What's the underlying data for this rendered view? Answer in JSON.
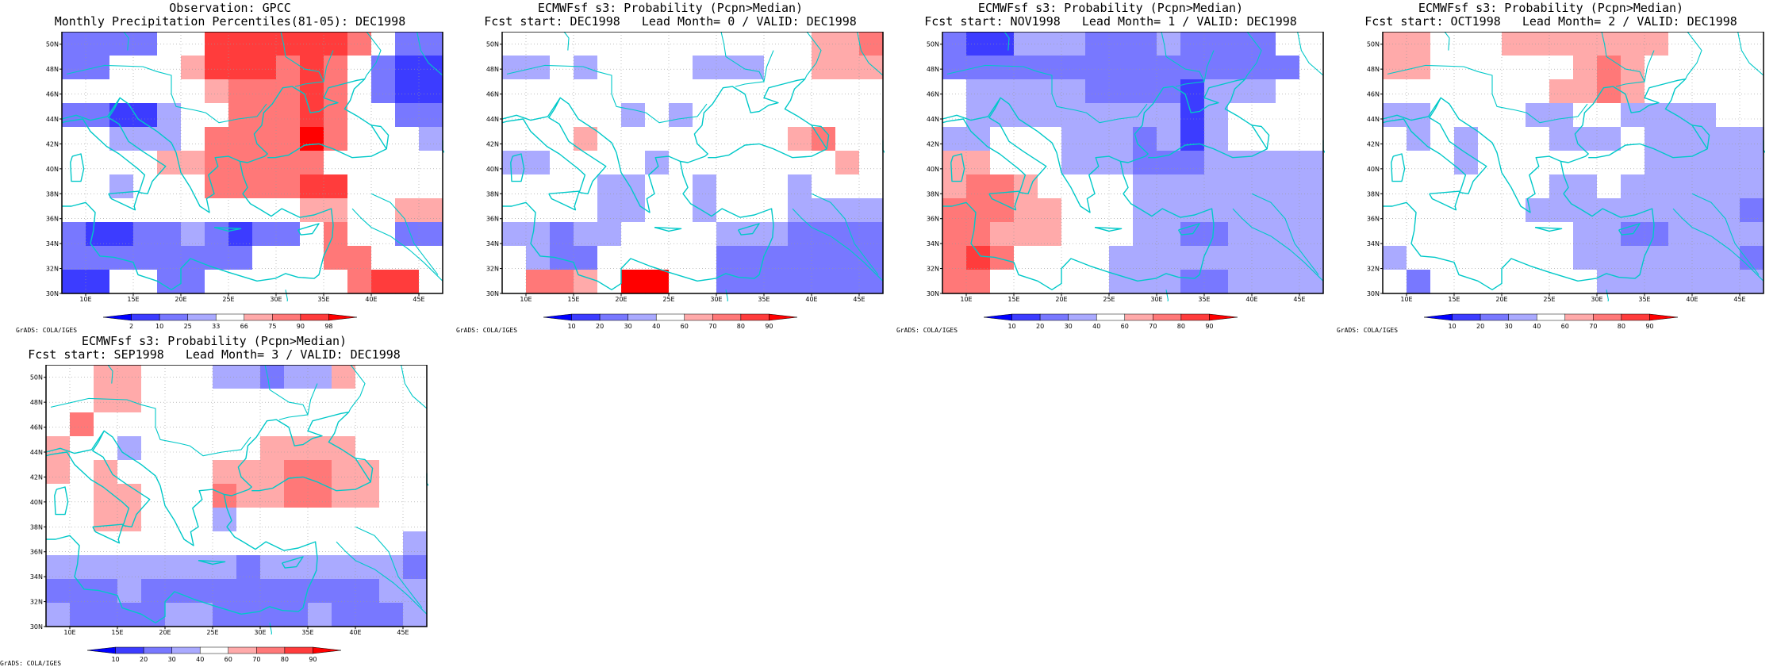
{
  "chart_data": [
    {
      "type": "heatmap",
      "title_line1": "Observation: GPCC",
      "title_line2": "Monthly Precipitation Percentiles(81-05): DEC1998",
      "credit": "GrADS: COLA/IGES",
      "xticks": [
        "10E",
        "15E",
        "20E",
        "25E",
        "30E",
        "35E",
        "40E",
        "45E"
      ],
      "yticks": [
        "30N",
        "32N",
        "34N",
        "36N",
        "38N",
        "40N",
        "42N",
        "44N",
        "46N",
        "48N",
        "50N"
      ],
      "xlim": [
        7.5,
        47.5
      ],
      "ylim": [
        30,
        51
      ],
      "colorbar": {
        "labels": [
          "2",
          "10",
          "25",
          "33",
          "66",
          "75",
          "90",
          "98"
        ],
        "colors": [
          "#0000ff",
          "#3c3cff",
          "#7878ff",
          "#aaaaff",
          "#ffffff",
          "#ffaaaa",
          "#ff7878",
          "#ff3c3c",
          "#ff0000"
        ]
      },
      "grid_values": [
        [
          2,
          2,
          2,
          2,
          4,
          4,
          7,
          7,
          7,
          7,
          7,
          7,
          6,
          4,
          2,
          2
        ],
        [
          2,
          2,
          4,
          4,
          4,
          5,
          7,
          7,
          7,
          6,
          7,
          6,
          4,
          2,
          1,
          1
        ],
        [
          4,
          4,
          4,
          4,
          4,
          4,
          5,
          6,
          6,
          6,
          7,
          6,
          4,
          2,
          1,
          1
        ],
        [
          2,
          2,
          1,
          1,
          3,
          4,
          4,
          6,
          6,
          6,
          7,
          6,
          4,
          4,
          2,
          2
        ],
        [
          4,
          4,
          3,
          3,
          3,
          4,
          6,
          6,
          6,
          6,
          8,
          6,
          4,
          4,
          4,
          3
        ],
        [
          4,
          4,
          4,
          4,
          5,
          5,
          6,
          6,
          6,
          6,
          6,
          4,
          4,
          4,
          4,
          4
        ],
        [
          4,
          4,
          3,
          4,
          4,
          4,
          6,
          6,
          6,
          6,
          7,
          7,
          4,
          4,
          4,
          4
        ],
        [
          4,
          4,
          4,
          4,
          4,
          4,
          4,
          4,
          4,
          4,
          5,
          5,
          4,
          4,
          5,
          5
        ],
        [
          2,
          1,
          1,
          2,
          2,
          3,
          2,
          1,
          2,
          2,
          4,
          6,
          4,
          4,
          2,
          2
        ],
        [
          2,
          2,
          2,
          2,
          2,
          2,
          2,
          2,
          4,
          4,
          4,
          6,
          6,
          4,
          4,
          4
        ],
        [
          1,
          1,
          4,
          4,
          2,
          2,
          4,
          4,
          4,
          4,
          4,
          4,
          6,
          7,
          7,
          4
        ]
      ]
    },
    {
      "type": "heatmap",
      "title_line1": "ECMWFsf s3: Probability (Pcpn>Median)",
      "title_line2": "Fcst start: DEC1998   Lead Month= 0 / VALID: DEC1998",
      "credit": "GrADS: COLA/IGES",
      "xticks": [
        "10E",
        "15E",
        "20E",
        "25E",
        "30E",
        "35E",
        "40E",
        "45E"
      ],
      "yticks": [
        "30N",
        "32N",
        "34N",
        "36N",
        "38N",
        "40N",
        "42N",
        "44N",
        "46N",
        "48N",
        "50N"
      ],
      "xlim": [
        7.5,
        47.5
      ],
      "ylim": [
        30,
        51
      ],
      "colorbar": {
        "labels": [
          "10",
          "20",
          "30",
          "40",
          "60",
          "70",
          "80",
          "90"
        ],
        "colors": [
          "#0000ff",
          "#3c3cff",
          "#7878ff",
          "#aaaaff",
          "#ffffff",
          "#ffaaaa",
          "#ff7878",
          "#ff3c3c",
          "#ff0000"
        ]
      },
      "grid_values": [
        [
          4,
          4,
          4,
          4,
          4,
          4,
          4,
          4,
          4,
          4,
          4,
          4,
          4,
          5,
          5,
          6
        ],
        [
          3,
          3,
          4,
          3,
          4,
          4,
          4,
          4,
          3,
          3,
          3,
          4,
          4,
          5,
          5,
          5
        ],
        [
          4,
          4,
          4,
          4,
          4,
          4,
          4,
          4,
          4,
          4,
          4,
          4,
          4,
          4,
          4,
          4
        ],
        [
          4,
          4,
          4,
          4,
          4,
          3,
          4,
          3,
          4,
          4,
          4,
          4,
          4,
          4,
          4,
          4
        ],
        [
          4,
          4,
          4,
          5,
          4,
          4,
          4,
          4,
          4,
          4,
          4,
          4,
          5,
          6,
          4,
          4
        ],
        [
          3,
          3,
          4,
          4,
          4,
          4,
          3,
          4,
          4,
          4,
          4,
          4,
          4,
          4,
          5,
          4
        ],
        [
          4,
          4,
          4,
          4,
          3,
          3,
          4,
          4,
          3,
          4,
          4,
          4,
          3,
          4,
          4,
          4
        ],
        [
          4,
          4,
          4,
          4,
          3,
          3,
          4,
          4,
          3,
          4,
          4,
          4,
          3,
          3,
          3,
          3
        ],
        [
          3,
          3,
          2,
          3,
          3,
          4,
          4,
          4,
          4,
          3,
          3,
          3,
          2,
          2,
          2,
          2
        ],
        [
          4,
          3,
          2,
          2,
          4,
          4,
          4,
          4,
          4,
          2,
          2,
          2,
          2,
          2,
          2,
          2
        ],
        [
          4,
          6,
          6,
          5,
          4,
          8,
          8,
          4,
          4,
          2,
          2,
          2,
          2,
          2,
          2,
          2
        ]
      ]
    },
    {
      "type": "heatmap",
      "title_line1": "ECMWFsf s3: Probability (Pcpn>Median)",
      "title_line2": "Fcst start: NOV1998   Lead Month= 1 / VALID: DEC1998",
      "credit": "GrADS: COLA/IGES",
      "xticks": [
        "10E",
        "15E",
        "20E",
        "25E",
        "30E",
        "35E",
        "40E",
        "45E"
      ],
      "yticks": [
        "30N",
        "32N",
        "34N",
        "36N",
        "38N",
        "40N",
        "42N",
        "44N",
        "46N",
        "48N",
        "50N"
      ],
      "xlim": [
        7.5,
        47.5
      ],
      "ylim": [
        30,
        51
      ],
      "colorbar": {
        "labels": [
          "10",
          "20",
          "30",
          "40",
          "60",
          "70",
          "80",
          "90"
        ],
        "colors": [
          "#0000ff",
          "#3c3cff",
          "#7878ff",
          "#aaaaff",
          "#ffffff",
          "#ffaaaa",
          "#ff7878",
          "#ff3c3c",
          "#ff0000"
        ]
      },
      "grid_values": [
        [
          2,
          1,
          1,
          3,
          3,
          3,
          2,
          2,
          2,
          3,
          2,
          2,
          2,
          2,
          4,
          4
        ],
        [
          2,
          2,
          2,
          2,
          2,
          2,
          2,
          2,
          2,
          2,
          2,
          2,
          2,
          2,
          2,
          4
        ],
        [
          4,
          3,
          3,
          3,
          3,
          3,
          2,
          2,
          2,
          2,
          1,
          3,
          3,
          3,
          4,
          4
        ],
        [
          4,
          3,
          3,
          3,
          3,
          3,
          3,
          3,
          3,
          3,
          1,
          3,
          4,
          4,
          4,
          4
        ],
        [
          3,
          3,
          4,
          4,
          4,
          3,
          3,
          3,
          2,
          3,
          1,
          3,
          4,
          4,
          4,
          4
        ],
        [
          5,
          5,
          4,
          4,
          4,
          3,
          3,
          3,
          2,
          2,
          2,
          3,
          3,
          3,
          3,
          3
        ],
        [
          5,
          6,
          6,
          5,
          4,
          4,
          4,
          4,
          3,
          3,
          3,
          3,
          3,
          3,
          3,
          3
        ],
        [
          6,
          6,
          6,
          5,
          5,
          4,
          4,
          4,
          3,
          3,
          3,
          3,
          3,
          3,
          3,
          3
        ],
        [
          6,
          6,
          5,
          5,
          5,
          4,
          4,
          4,
          3,
          3,
          2,
          2,
          3,
          3,
          3,
          3
        ],
        [
          6,
          7,
          6,
          4,
          4,
          4,
          4,
          3,
          3,
          3,
          3,
          3,
          3,
          3,
          3,
          3
        ],
        [
          6,
          6,
          4,
          4,
          4,
          4,
          4,
          3,
          3,
          3,
          2,
          2,
          3,
          3,
          3,
          3
        ]
      ]
    },
    {
      "type": "heatmap",
      "title_line1": "ECMWFsf s3: Probability (Pcpn>Median)",
      "title_line2": "Fcst start: OCT1998   Lead Month= 2 / VALID: DEC1998",
      "credit": "GrADS: COLA/IGES",
      "xticks": [
        "10E",
        "15E",
        "20E",
        "25E",
        "30E",
        "35E",
        "40E",
        "45E"
      ],
      "yticks": [
        "30N",
        "32N",
        "34N",
        "36N",
        "38N",
        "40N",
        "42N",
        "44N",
        "46N",
        "48N",
        "50N"
      ],
      "xlim": [
        7.5,
        47.5
      ],
      "ylim": [
        30,
        51
      ],
      "colorbar": {
        "labels": [
          "10",
          "20",
          "30",
          "40",
          "60",
          "70",
          "80",
          "90"
        ],
        "colors": [
          "#0000ff",
          "#3c3cff",
          "#7878ff",
          "#aaaaff",
          "#ffffff",
          "#ffaaaa",
          "#ff7878",
          "#ff3c3c",
          "#ff0000"
        ]
      },
      "grid_values": [
        [
          5,
          5,
          4,
          4,
          4,
          5,
          5,
          5,
          5,
          5,
          5,
          5,
          4,
          4,
          4,
          4
        ],
        [
          5,
          5,
          4,
          4,
          4,
          4,
          4,
          4,
          5,
          6,
          5,
          4,
          4,
          4,
          4,
          4
        ],
        [
          4,
          4,
          4,
          4,
          4,
          4,
          4,
          5,
          5,
          6,
          5,
          4,
          4,
          4,
          4,
          4
        ],
        [
          3,
          3,
          4,
          4,
          4,
          4,
          3,
          3,
          4,
          4,
          3,
          3,
          3,
          3,
          4,
          4
        ],
        [
          4,
          3,
          4,
          3,
          4,
          4,
          4,
          3,
          3,
          3,
          4,
          3,
          3,
          3,
          3,
          3
        ],
        [
          4,
          4,
          4,
          3,
          4,
          4,
          4,
          4,
          4,
          4,
          4,
          3,
          3,
          3,
          3,
          3
        ],
        [
          4,
          4,
          4,
          4,
          4,
          4,
          4,
          3,
          3,
          4,
          3,
          3,
          3,
          3,
          3,
          3
        ],
        [
          4,
          4,
          4,
          4,
          4,
          4,
          3,
          3,
          3,
          3,
          3,
          3,
          3,
          3,
          3,
          2
        ],
        [
          4,
          4,
          4,
          4,
          4,
          4,
          4,
          4,
          3,
          3,
          2,
          2,
          3,
          3,
          3,
          3
        ],
        [
          3,
          4,
          4,
          4,
          4,
          4,
          4,
          4,
          3,
          3,
          3,
          3,
          3,
          3,
          3,
          2
        ],
        [
          4,
          2,
          4,
          4,
          4,
          4,
          4,
          4,
          4,
          3,
          3,
          3,
          3,
          3,
          3,
          3
        ]
      ]
    },
    {
      "type": "heatmap",
      "title_line1": "ECMWFsf s3: Probability (Pcpn>Median)",
      "title_line2": "Fcst start: SEP1998   Lead Month= 3 / VALID: DEC1998",
      "credit": "GrADS: COLA/IGES",
      "xticks": [
        "10E",
        "15E",
        "20E",
        "25E",
        "30E",
        "35E",
        "40E",
        "45E"
      ],
      "yticks": [
        "30N",
        "32N",
        "34N",
        "36N",
        "38N",
        "40N",
        "42N",
        "44N",
        "46N",
        "48N",
        "50N"
      ],
      "xlim": [
        7.5,
        47.5
      ],
      "ylim": [
        30,
        51
      ],
      "colorbar": {
        "labels": [
          "10",
          "20",
          "30",
          "40",
          "60",
          "70",
          "80",
          "90"
        ],
        "colors": [
          "#0000ff",
          "#3c3cff",
          "#7878ff",
          "#aaaaff",
          "#ffffff",
          "#ffaaaa",
          "#ff7878",
          "#ff3c3c",
          "#ff0000"
        ]
      },
      "grid_values": [
        [
          4,
          4,
          5,
          5,
          4,
          4,
          4,
          3,
          3,
          2,
          3,
          3,
          5,
          4,
          4,
          4
        ],
        [
          4,
          4,
          5,
          5,
          4,
          4,
          4,
          4,
          4,
          4,
          4,
          4,
          4,
          4,
          4,
          4
        ],
        [
          4,
          6,
          4,
          4,
          4,
          4,
          4,
          4,
          4,
          4,
          4,
          4,
          4,
          4,
          4,
          4
        ],
        [
          5,
          4,
          4,
          3,
          4,
          4,
          4,
          4,
          4,
          5,
          5,
          5,
          5,
          4,
          4,
          4
        ],
        [
          5,
          4,
          5,
          4,
          4,
          4,
          4,
          5,
          5,
          5,
          6,
          6,
          5,
          5,
          4,
          4
        ],
        [
          4,
          4,
          5,
          5,
          4,
          4,
          4,
          6,
          5,
          5,
          6,
          6,
          5,
          5,
          4,
          4
        ],
        [
          4,
          4,
          5,
          5,
          4,
          4,
          4,
          3,
          4,
          4,
          4,
          4,
          4,
          4,
          4,
          4
        ],
        [
          4,
          4,
          4,
          4,
          4,
          4,
          4,
          4,
          4,
          4,
          4,
          4,
          4,
          4,
          4,
          3
        ],
        [
          3,
          3,
          3,
          3,
          3,
          3,
          3,
          3,
          2,
          3,
          3,
          3,
          3,
          3,
          3,
          2
        ],
        [
          2,
          2,
          2,
          3,
          2,
          2,
          2,
          2,
          2,
          2,
          2,
          2,
          2,
          2,
          3,
          3
        ],
        [
          3,
          2,
          2,
          2,
          2,
          3,
          3,
          2,
          2,
          2,
          2,
          3,
          2,
          2,
          2,
          3
        ]
      ]
    }
  ]
}
